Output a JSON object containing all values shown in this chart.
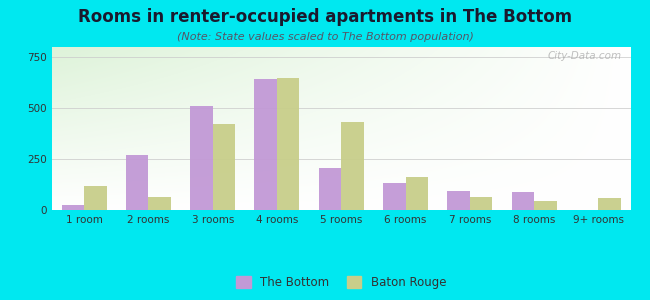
{
  "title": "Rooms in renter-occupied apartments in The Bottom",
  "subtitle": "(Note: State values scaled to The Bottom population)",
  "categories": [
    "1 room",
    "2 rooms",
    "3 rooms",
    "4 rooms",
    "5 rooms",
    "6 rooms",
    "7 rooms",
    "8 rooms",
    "9+ rooms"
  ],
  "the_bottom": [
    25,
    270,
    510,
    640,
    205,
    130,
    95,
    90,
    0
  ],
  "baton_rouge": [
    115,
    65,
    420,
    645,
    430,
    160,
    65,
    45,
    60
  ],
  "bottom_color": "#c299d6",
  "baton_rouge_color": "#c8ce8a",
  "ylim": [
    0,
    800
  ],
  "yticks": [
    0,
    250,
    500,
    750
  ],
  "background_outer": "#00e8f0",
  "grid_color": "#cccccc",
  "title_fontsize": 12,
  "subtitle_fontsize": 8,
  "tick_fontsize": 7.5,
  "legend_fontsize": 8.5,
  "watermark": "City-Data.com"
}
